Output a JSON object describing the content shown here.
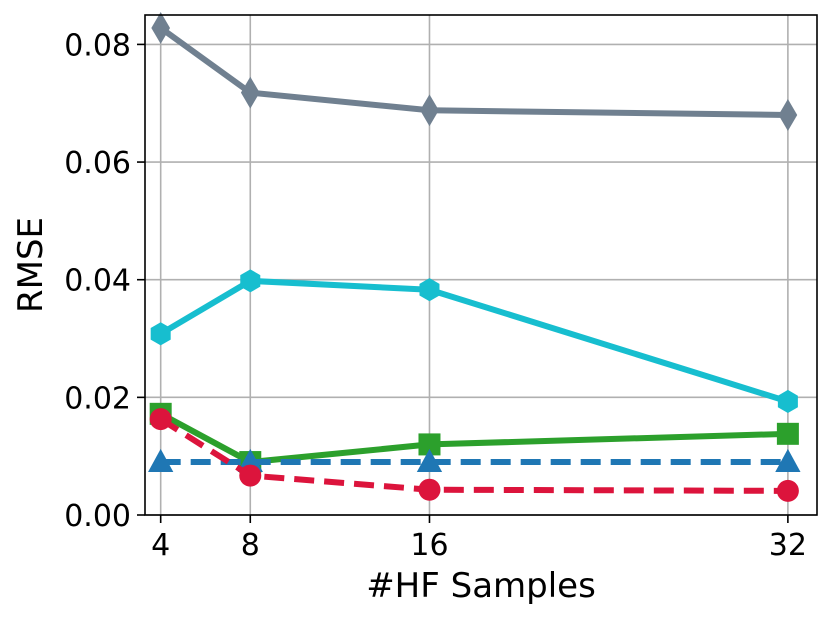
{
  "chart_data": {
    "type": "line",
    "title": "",
    "xlabel": "#HF Samples",
    "ylabel": "RMSE",
    "x": [
      4,
      8,
      16,
      32
    ],
    "xlim": [
      3.3,
      33.3
    ],
    "ylim": [
      0.0,
      0.085
    ],
    "xticks": [
      4,
      8,
      16,
      32
    ],
    "xtick_labels": [
      "4",
      "8",
      "16",
      "32"
    ],
    "yticks": [
      0.0,
      0.02,
      0.04,
      0.06,
      0.08
    ],
    "ytick_labels": [
      "0.00",
      "0.02",
      "0.04",
      "0.06",
      "0.08"
    ],
    "grid": true,
    "legend": "none",
    "series": [
      {
        "values": [
          0.0828,
          0.0718,
          0.0688,
          0.068
        ],
        "color": "#708090",
        "marker": "diamond",
        "linestyle": "solid"
      },
      {
        "values": [
          0.0308,
          0.0398,
          0.0383,
          0.0193
        ],
        "color": "#17becf",
        "marker": "hexagon",
        "linestyle": "solid"
      },
      {
        "values": [
          0.0172,
          0.009,
          0.012,
          0.0138
        ],
        "color": "#2ca02c",
        "marker": "square",
        "linestyle": "solid"
      },
      {
        "values": [
          0.009,
          0.009,
          0.009,
          0.009
        ],
        "color": "#1f77b4",
        "marker": "triangle",
        "linestyle": "dashed"
      },
      {
        "values": [
          0.0163,
          0.0067,
          0.0043,
          0.0041
        ],
        "color": "#dc143c",
        "marker": "circle",
        "linestyle": "dashed"
      }
    ]
  }
}
